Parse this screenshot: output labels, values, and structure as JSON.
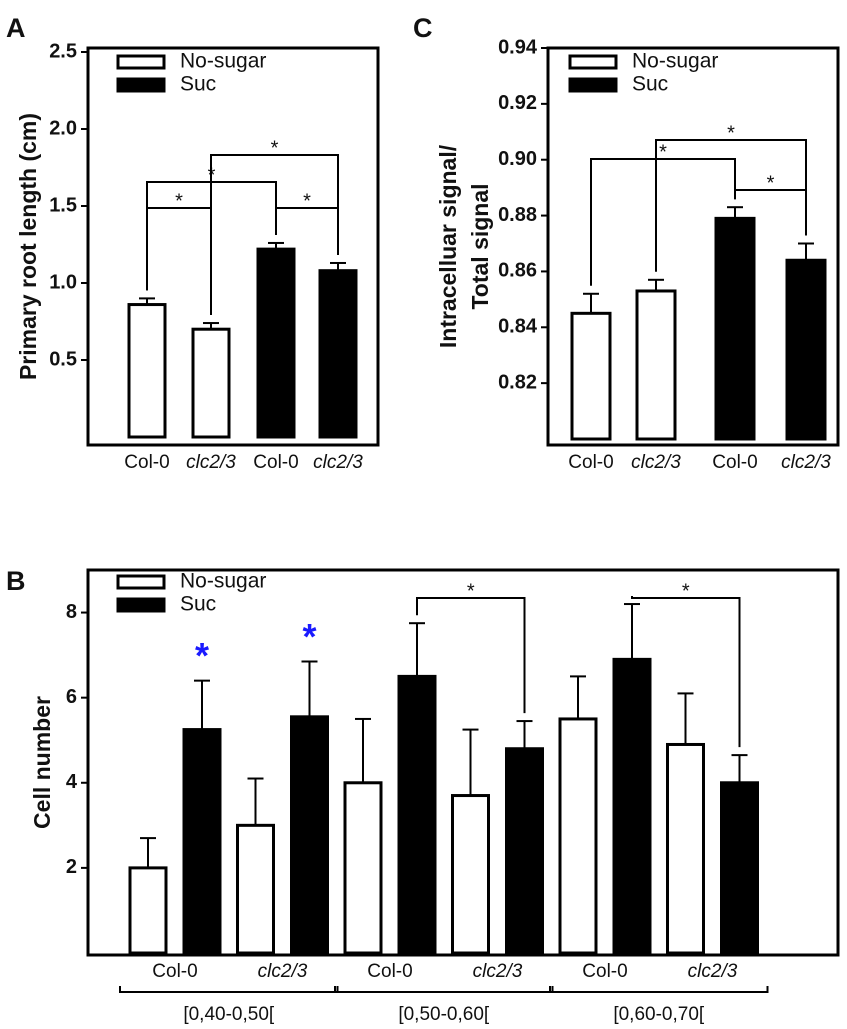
{
  "chart_data": [
    {
      "type": "bar",
      "panel": "A",
      "ylabel": [
        "Primary root length (cm)"
      ],
      "categories": [
        "Col-0",
        "clc2/3",
        "Col-0",
        "clc2/3"
      ],
      "series": [
        {
          "name": "No-sugar",
          "color": "#ffffff",
          "values": [
            0.86,
            0.7,
            null,
            null
          ],
          "errors": [
            0.04,
            0.04,
            null,
            null
          ]
        },
        {
          "name": "Suc",
          "color": "#000000",
          "values": [
            null,
            null,
            1.22,
            1.08
          ],
          "errors": [
            null,
            null,
            0.04,
            0.05
          ]
        }
      ],
      "ylim": [
        0,
        2.5
      ],
      "yticks": [
        0.5,
        {
          "value": 1,
          "label": "1.0"
        },
        1.5,
        {
          "value": 2,
          "label": "2.0"
        },
        2.5
      ],
      "annotations": [
        {
          "text": "*",
          "from": [
            0,
            0
          ],
          "to": [
            0,
            1
          ]
        },
        {
          "text": "*",
          "from": [
            0,
            0
          ],
          "to": [
            1,
            2
          ]
        },
        {
          "text": "*",
          "from": [
            1,
            2
          ],
          "to": [
            1,
            3
          ]
        },
        {
          "text": "*",
          "from": [
            0,
            1
          ],
          "to": [
            1,
            3
          ]
        }
      ]
    },
    {
      "type": "bar",
      "panel": "C",
      "ylabel": [
        "Intracelluar signal/",
        "Total signal"
      ],
      "categories": [
        "Col-0",
        "clc2/3",
        "Col-0",
        "clc2/3"
      ],
      "series": [
        {
          "name": "No-sugar",
          "color": "#ffffff",
          "values": [
            0.845,
            0.853,
            null,
            null
          ],
          "errors": [
            0.007,
            0.004,
            null,
            null
          ]
        },
        {
          "name": "Suc",
          "color": "#000000",
          "values": [
            null,
            null,
            0.879,
            0.864
          ],
          "errors": [
            null,
            null,
            0.004,
            0.006
          ]
        }
      ],
      "ylim": [
        0.8,
        0.94
      ],
      "yticks": [
        0.82,
        0.84,
        0.86,
        0.88,
        {
          "value": 0.9,
          "label": "0.90"
        },
        0.92,
        0.94
      ],
      "annotations": [
        {
          "text": "*",
          "from": [
            0,
            0
          ],
          "to": [
            1,
            2
          ]
        },
        {
          "text": "*",
          "from": [
            1,
            2
          ],
          "to": [
            1,
            3
          ]
        },
        {
          "text": "*",
          "from": [
            0,
            1
          ],
          "to": [
            1,
            3
          ]
        }
      ]
    },
    {
      "type": "bar",
      "panel": "B",
      "ylabel": [
        "Cell number"
      ],
      "categories": [
        "Col-0",
        "clc2/3",
        "Col-0",
        "clc2/3",
        "Col-0",
        "clc2/3"
      ],
      "groups": [
        "[0,40-0,50[",
        "[0,50-0,60[",
        "[0,60-0,70["
      ],
      "series": [
        {
          "name": "No-sugar",
          "color": "#ffffff",
          "values": [
            2.0,
            3.0,
            4.0,
            3.7,
            5.5,
            4.9
          ],
          "errors": [
            0.7,
            1.1,
            1.5,
            1.55,
            1.0,
            1.2
          ]
        },
        {
          "name": "Suc",
          "color": "#000000",
          "values": [
            5.25,
            5.55,
            6.5,
            4.8,
            6.9,
            4.0
          ],
          "errors": [
            1.15,
            1.3,
            1.25,
            0.65,
            1.3,
            0.65
          ]
        }
      ],
      "ylim": [
        0,
        9
      ],
      "yticks": [
        2,
        4,
        6,
        8
      ],
      "annotations": [
        {
          "text": "*",
          "from": [
            1,
            2
          ],
          "to": [
            1,
            3
          ]
        },
        {
          "text": "*",
          "from": [
            1,
            4
          ],
          "to": [
            1,
            5
          ]
        },
        {
          "text": "*",
          "color": "#1a1aff",
          "at": [
            1,
            0
          ]
        },
        {
          "text": "*",
          "color": "#1a1aff",
          "at": [
            1,
            1
          ]
        }
      ]
    }
  ]
}
